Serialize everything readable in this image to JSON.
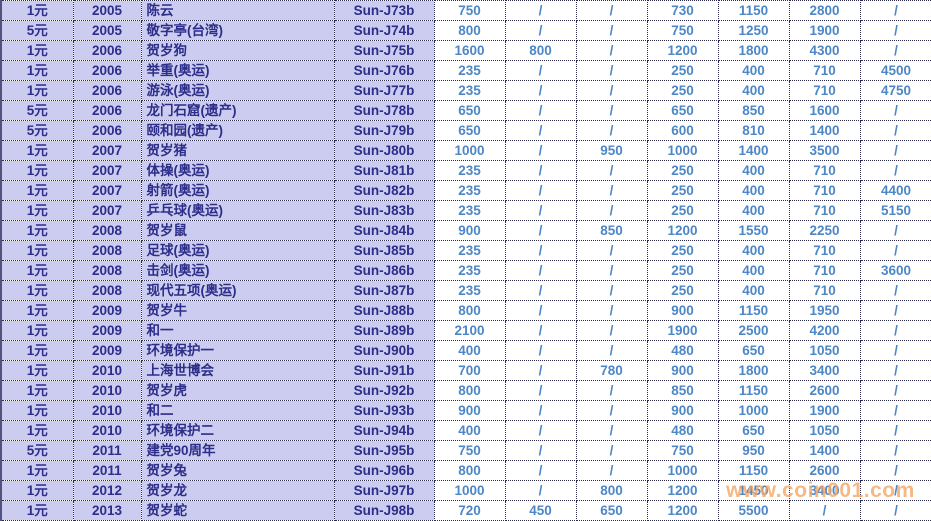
{
  "table": {
    "rows": [
      {
        "denomination": "1元",
        "year": "2005",
        "name": "陈云",
        "code": "Sun-J73b",
        "values": [
          "750",
          "/",
          "/",
          "730",
          "1150",
          "2800",
          "/"
        ]
      },
      {
        "denomination": "5元",
        "year": "2005",
        "name": "敬字亭(台湾)",
        "code": "Sun-J74b",
        "values": [
          "800",
          "/",
          "/",
          "750",
          "1250",
          "1900",
          "/"
        ]
      },
      {
        "denomination": "1元",
        "year": "2006",
        "name": "贺岁狗",
        "code": "Sun-J75b",
        "values": [
          "1600",
          "800",
          "/",
          "1200",
          "1800",
          "4300",
          "/"
        ]
      },
      {
        "denomination": "1元",
        "year": "2006",
        "name": "举重(奥运)",
        "code": "Sun-J76b",
        "values": [
          "235",
          "/",
          "/",
          "250",
          "400",
          "710",
          "4500"
        ]
      },
      {
        "denomination": "1元",
        "year": "2006",
        "name": "游泳(奥运)",
        "code": "Sun-J77b",
        "values": [
          "235",
          "/",
          "/",
          "250",
          "400",
          "710",
          "4750"
        ]
      },
      {
        "denomination": "5元",
        "year": "2006",
        "name": "龙门石窟(遗产)",
        "code": "Sun-J78b",
        "values": [
          "650",
          "/",
          "/",
          "650",
          "850",
          "1600",
          "/"
        ]
      },
      {
        "denomination": "5元",
        "year": "2006",
        "name": "颐和园(遗产)",
        "code": "Sun-J79b",
        "values": [
          "650",
          "/",
          "/",
          "600",
          "810",
          "1400",
          "/"
        ]
      },
      {
        "denomination": "1元",
        "year": "2007",
        "name": "贺岁猪",
        "code": "Sun-J80b",
        "values": [
          "1000",
          "/",
          "950",
          "1000",
          "1400",
          "3500",
          "/"
        ]
      },
      {
        "denomination": "1元",
        "year": "2007",
        "name": "体操(奥运)",
        "code": "Sun-J81b",
        "values": [
          "235",
          "/",
          "/",
          "250",
          "400",
          "710",
          "/"
        ]
      },
      {
        "denomination": "1元",
        "year": "2007",
        "name": "射箭(奥运)",
        "code": "Sun-J82b",
        "values": [
          "235",
          "/",
          "/",
          "250",
          "400",
          "710",
          "4400"
        ]
      },
      {
        "denomination": "1元",
        "year": "2007",
        "name": "乒乓球(奥运)",
        "code": "Sun-J83b",
        "values": [
          "235",
          "/",
          "/",
          "250",
          "400",
          "710",
          "5150"
        ]
      },
      {
        "denomination": "1元",
        "year": "2008",
        "name": "贺岁鼠",
        "code": "Sun-J84b",
        "values": [
          "900",
          "/",
          "850",
          "1200",
          "1550",
          "2250",
          "/"
        ]
      },
      {
        "denomination": "1元",
        "year": "2008",
        "name": "足球(奥运)",
        "code": "Sun-J85b",
        "values": [
          "235",
          "/",
          "/",
          "250",
          "400",
          "710",
          "/"
        ]
      },
      {
        "denomination": "1元",
        "year": "2008",
        "name": "击剑(奥运)",
        "code": "Sun-J86b",
        "values": [
          "235",
          "/",
          "/",
          "250",
          "400",
          "710",
          "3600"
        ]
      },
      {
        "denomination": "1元",
        "year": "2008",
        "name": "现代五项(奥运)",
        "code": "Sun-J87b",
        "values": [
          "235",
          "/",
          "/",
          "250",
          "400",
          "710",
          "/"
        ]
      },
      {
        "denomination": "1元",
        "year": "2009",
        "name": "贺岁牛",
        "code": "Sun-J88b",
        "values": [
          "800",
          "/",
          "/",
          "900",
          "1150",
          "1950",
          "/"
        ]
      },
      {
        "denomination": "1元",
        "year": "2009",
        "name": "和一",
        "code": "Sun-J89b",
        "values": [
          "2100",
          "/",
          "/",
          "1900",
          "2500",
          "4200",
          "/"
        ]
      },
      {
        "denomination": "1元",
        "year": "2009",
        "name": "环境保护一",
        "code": "Sun-J90b",
        "values": [
          "400",
          "/",
          "/",
          "480",
          "650",
          "1050",
          "/"
        ]
      },
      {
        "denomination": "1元",
        "year": "2010",
        "name": "上海世博会",
        "code": "Sun-J91b",
        "values": [
          "700",
          "/",
          "780",
          "900",
          "1800",
          "3400",
          "/"
        ]
      },
      {
        "denomination": "1元",
        "year": "2010",
        "name": "贺岁虎",
        "code": "Sun-J92b",
        "values": [
          "800",
          "/",
          "/",
          "850",
          "1150",
          "2600",
          "/"
        ]
      },
      {
        "denomination": "1元",
        "year": "2010",
        "name": "和二",
        "code": "Sun-J93b",
        "values": [
          "900",
          "/",
          "/",
          "900",
          "1000",
          "1900",
          "/"
        ]
      },
      {
        "denomination": "1元",
        "year": "2010",
        "name": "环境保护二",
        "code": "Sun-J94b",
        "values": [
          "400",
          "/",
          "/",
          "480",
          "650",
          "1050",
          "/"
        ]
      },
      {
        "denomination": "5元",
        "year": "2011",
        "name": "建党90周年",
        "code": "Sun-J95b",
        "values": [
          "750",
          "/",
          "/",
          "750",
          "950",
          "1400",
          "/"
        ]
      },
      {
        "denomination": "1元",
        "year": "2011",
        "name": "贺岁兔",
        "code": "Sun-J96b",
        "values": [
          "800",
          "/",
          "/",
          "1000",
          "1150",
          "2600",
          "/"
        ]
      },
      {
        "denomination": "1元",
        "year": "2012",
        "name": "贺岁龙",
        "code": "Sun-J97b",
        "values": [
          "1000",
          "/",
          "800",
          "1200",
          "1450",
          "3400",
          "/"
        ]
      },
      {
        "denomination": "1元",
        "year": "2013",
        "name": "贺岁蛇",
        "code": "Sun-J98b",
        "values": [
          "720",
          "450",
          "650",
          "1200",
          "5500",
          "/",
          "/"
        ]
      }
    ]
  },
  "watermark": {
    "text": "www.coin001.com"
  },
  "colors": {
    "row_bg": "#ccccf0",
    "left_text": "#2d2d8a",
    "value_text": "#4e87c6",
    "grid": "#2b2b4d",
    "left_edge": "#535380",
    "watermark": "#f5a55f"
  }
}
